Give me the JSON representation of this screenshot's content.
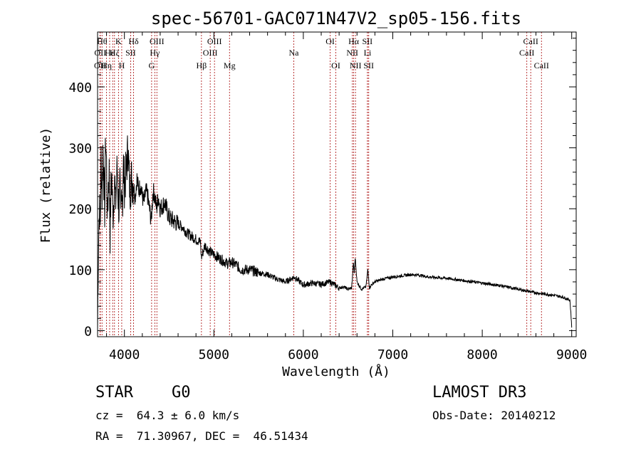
{
  "chart_data": {
    "type": "line",
    "title": "spec-56701-GAC071N47V2_sp05-156.fits",
    "xlabel": "Wavelength (Å)",
    "ylabel": "Flux (relative)",
    "xlim": [
      3700,
      9050
    ],
    "ylim": [
      -10,
      490
    ],
    "xticks": [
      4000,
      5000,
      6000,
      7000,
      8000,
      9000
    ],
    "yticks": [
      0,
      100,
      200,
      300,
      400
    ],
    "series": [
      {
        "name": "flux",
        "x": [
          3700,
          3710,
          3720,
          3730,
          3740,
          3750,
          3760,
          3770,
          3780,
          3790,
          3800,
          3810,
          3820,
          3830,
          3840,
          3850,
          3860,
          3870,
          3880,
          3890,
          3900,
          3910,
          3920,
          3930,
          3940,
          3950,
          3960,
          3970,
          3980,
          3990,
          4000,
          4020,
          4040,
          4060,
          4080,
          4100,
          4120,
          4140,
          4160,
          4180,
          4200,
          4220,
          4240,
          4260,
          4280,
          4300,
          4320,
          4340,
          4360,
          4380,
          4400,
          4450,
          4500,
          4550,
          4600,
          4650,
          4700,
          4750,
          4800,
          4850,
          4860,
          4900,
          4950,
          5000,
          5050,
          5100,
          5150,
          5200,
          5250,
          5300,
          5400,
          5500,
          5600,
          5700,
          5800,
          5900,
          6000,
          6100,
          6200,
          6300,
          6400,
          6450,
          6500,
          6540,
          6550,
          6560,
          6570,
          6580,
          6600,
          6650,
          6700,
          6710,
          6720,
          6730,
          6740,
          6760,
          6800,
          6900,
          7000,
          7100,
          7200,
          7300,
          7400,
          7500,
          7600,
          7700,
          7800,
          7900,
          8000,
          8100,
          8200,
          8300,
          8400,
          8500,
          8600,
          8700,
          8800,
          8900,
          8950,
          8980,
          8990,
          9000
        ],
        "values": [
          0,
          150,
          200,
          180,
          290,
          220,
          300,
          250,
          200,
          320,
          270,
          180,
          240,
          260,
          160,
          230,
          250,
          190,
          210,
          260,
          200,
          240,
          270,
          220,
          200,
          230,
          180,
          250,
          210,
          270,
          240,
          260,
          300,
          230,
          250,
          240,
          220,
          250,
          230,
          240,
          220,
          210,
          230,
          220,
          200,
          180,
          230,
          220,
          200,
          220,
          200,
          210,
          185,
          180,
          175,
          170,
          160,
          155,
          150,
          145,
          120,
          140,
          130,
          125,
          120,
          115,
          110,
          112,
          108,
          100,
          100,
          95,
          92,
          85,
          80,
          88,
          75,
          78,
          76,
          80,
          70,
          72,
          68,
          70,
          90,
          110,
          95,
          120,
          80,
          68,
          72,
          85,
          100,
          85,
          70,
          75,
          80,
          85,
          88,
          90,
          92,
          91,
          88,
          87,
          86,
          84,
          82,
          80,
          78,
          76,
          74,
          71,
          68,
          65,
          62,
          60,
          58,
          55,
          52,
          50,
          30,
          5
        ]
      }
    ],
    "lines": [
      {
        "wl": 3727,
        "label": "OII",
        "row": 3
      },
      {
        "wl": 3730,
        "label": "OII",
        "row": 2
      },
      {
        "wl": 3750,
        "label": "Hθ",
        "row": 1
      },
      {
        "wl": 3800,
        "label": "Hη",
        "row": 3
      },
      {
        "wl": 3835,
        "label": "Hε",
        "row": 2
      },
      {
        "wl": 3869,
        "label": "",
        "row": 0
      },
      {
        "wl": 3889,
        "label": "Hζ",
        "row": 2
      },
      {
        "wl": 3934,
        "label": "K",
        "row": 1
      },
      {
        "wl": 3970,
        "label": "H",
        "row": 3
      },
      {
        "wl": 4070,
        "label": "SII",
        "row": 2
      },
      {
        "wl": 4102,
        "label": "Hδ",
        "row": 1
      },
      {
        "wl": 4304,
        "label": "G",
        "row": 3
      },
      {
        "wl": 4340,
        "label": "Hγ",
        "row": 2
      },
      {
        "wl": 4363,
        "label": "OIII",
        "row": 1
      },
      {
        "wl": 4861,
        "label": "Hβ",
        "row": 3
      },
      {
        "wl": 4959,
        "label": "OIII",
        "row": 2
      },
      {
        "wl": 5007,
        "label": "OIII",
        "row": 1
      },
      {
        "wl": 5175,
        "label": "Mg",
        "row": 3
      },
      {
        "wl": 5893,
        "label": "Na",
        "row": 2
      },
      {
        "wl": 6300,
        "label": "OI",
        "row": 1
      },
      {
        "wl": 6363,
        "label": "OI",
        "row": 3
      },
      {
        "wl": 6548,
        "label": "NII",
        "row": 2
      },
      {
        "wl": 6563,
        "label": "Hα",
        "row": 1
      },
      {
        "wl": 6583,
        "label": "NII",
        "row": 3
      },
      {
        "wl": 6716,
        "label": "SII",
        "row": 1
      },
      {
        "wl": 6717,
        "label": "Li",
        "row": 2
      },
      {
        "wl": 6731,
        "label": "SII",
        "row": 3
      },
      {
        "wl": 8498,
        "label": "CaII",
        "row": 2
      },
      {
        "wl": 8542,
        "label": "CaII",
        "row": 1
      },
      {
        "wl": 8662,
        "label": "CaII",
        "row": 3
      }
    ],
    "line_color": "#b22222"
  },
  "info": {
    "object_class": "STAR",
    "subclass": "G0",
    "survey": "LAMOST DR3",
    "cz": "cz =  64.3 ± 6.0 km/s",
    "obs_date": "Obs-Date: 20140212",
    "coords": "RA =  71.30967, DEC =  46.51434"
  }
}
